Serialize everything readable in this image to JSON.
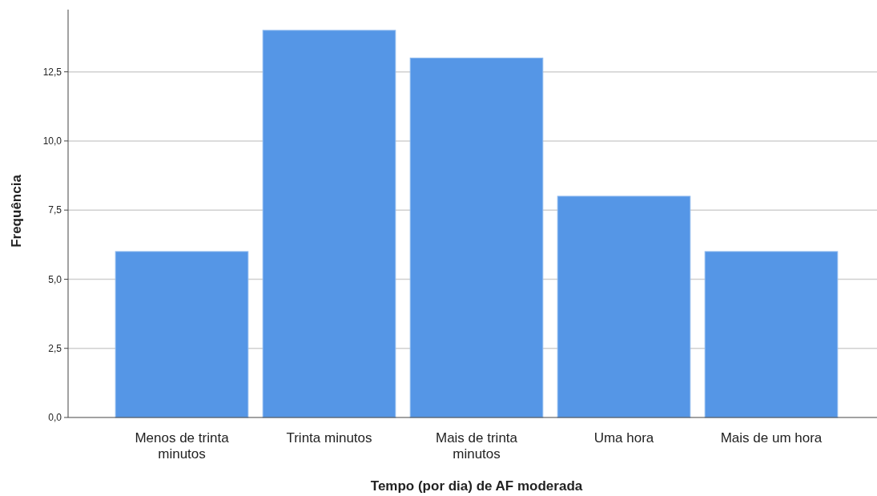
{
  "chart_data": {
    "type": "bar",
    "xlabel": "Tempo (por dia) de AF moderada",
    "ylabel": "Frequência",
    "categories": [
      "Menos de trinta minutos",
      "Trinta minutos",
      "Mais de trinta minutos",
      "Uma hora",
      "Mais de um hora"
    ],
    "values": [
      6,
      14,
      13,
      8,
      6
    ],
    "color": "#5596e6",
    "ylim": [
      0,
      14.75
    ],
    "yticks": [
      {
        "value": 0,
        "label": "0,0"
      },
      {
        "value": 2.5,
        "label": "2,5"
      },
      {
        "value": 5,
        "label": "5,0"
      },
      {
        "value": 7.5,
        "label": "7,5"
      },
      {
        "value": 10,
        "label": "10,0"
      },
      {
        "value": 12.5,
        "label": "12,5"
      }
    ],
    "grid": "y"
  }
}
